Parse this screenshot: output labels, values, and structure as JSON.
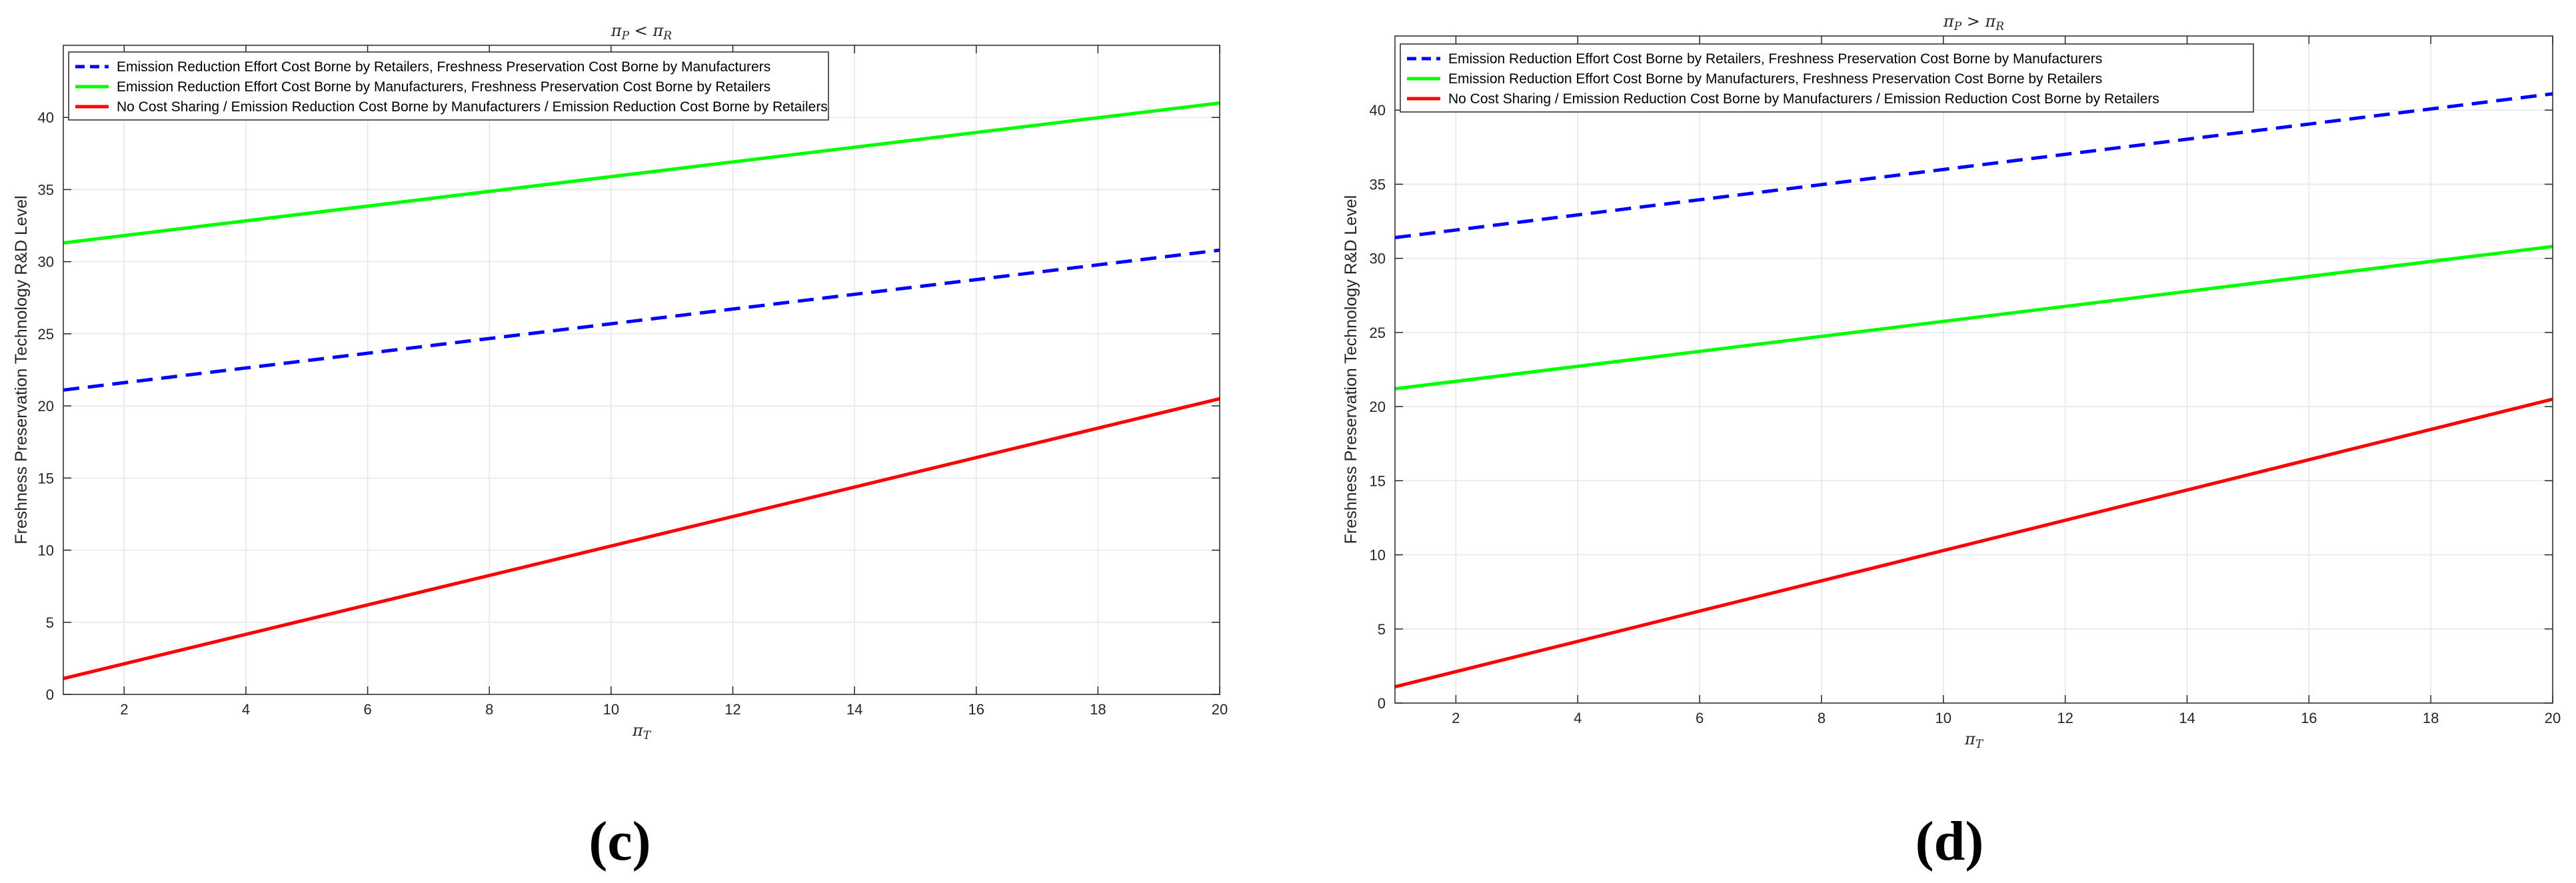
{
  "colors": {
    "blue": "#0000ff",
    "green": "#00ff00",
    "red": "#ff0000",
    "grid": "#e6e6e6",
    "axis": "#262626"
  },
  "chart_data": [
    {
      "type": "line",
      "panel_label": "(c)",
      "title": "π_P < π_R",
      "title_parts": {
        "var1": "π",
        "sub1": "P",
        "op": " < ",
        "var2": "π",
        "sub2": "R"
      },
      "xlabel": "π_T",
      "xlabel_parts": {
        "var": "π",
        "sub": "T"
      },
      "ylabel": "Freshness Preservation Technology R&D Level",
      "xlim": [
        1,
        20
      ],
      "ylim": [
        0,
        45
      ],
      "xticks": [
        2,
        4,
        6,
        8,
        10,
        12,
        14,
        16,
        18,
        20
      ],
      "yticks": [
        0,
        5,
        10,
        15,
        20,
        25,
        30,
        35,
        40
      ],
      "grid": true,
      "legend_position": "top-left",
      "x": [
        1,
        20
      ],
      "series": [
        {
          "name": "Emission Reduction Effort Cost Borne by Retailers, Freshness Preservation Cost Borne by Manufacturers",
          "color": "blue",
          "style": "dashed",
          "values": [
            21.1,
            30.8
          ]
        },
        {
          "name": "Emission Reduction Effort Cost Borne by Manufacturers, Freshness Preservation Cost Borne by Retailers",
          "color": "green",
          "style": "solid",
          "values": [
            31.3,
            41.0
          ]
        },
        {
          "name": "No Cost Sharing / Emission Reduction Cost Borne by Manufacturers / Emission Reduction Cost Borne by Retailers",
          "color": "red",
          "style": "solid",
          "values": [
            1.1,
            20.5
          ]
        }
      ]
    },
    {
      "type": "line",
      "panel_label": "(d)",
      "title": "π_P > π_R",
      "title_parts": {
        "var1": "π",
        "sub1": "P",
        "op": " > ",
        "var2": "π",
        "sub2": "R"
      },
      "xlabel": "π_T",
      "xlabel_parts": {
        "var": "π",
        "sub": "T"
      },
      "ylabel": "Freshness Preservation Technology R&D Level",
      "xlim": [
        1,
        20
      ],
      "ylim": [
        0,
        45
      ],
      "xticks": [
        2,
        4,
        6,
        8,
        10,
        12,
        14,
        16,
        18,
        20
      ],
      "yticks": [
        0,
        5,
        10,
        15,
        20,
        25,
        30,
        35,
        40
      ],
      "grid": true,
      "legend_position": "top-left",
      "x": [
        1,
        20
      ],
      "series": [
        {
          "name": "Emission Reduction Effort Cost Borne by Retailers, Freshness Preservation Cost Borne by Manufacturers",
          "color": "blue",
          "style": "dashed",
          "values": [
            31.4,
            41.1
          ]
        },
        {
          "name": "Emission Reduction Effort Cost Borne by Manufacturers, Freshness Preservation Cost Borne by Retailers",
          "color": "green",
          "style": "solid",
          "values": [
            21.2,
            30.8
          ]
        },
        {
          "name": "No Cost Sharing / Emission Reduction Cost Borne by Manufacturers / Emission Reduction Cost Borne by Retailers",
          "color": "red",
          "style": "solid",
          "values": [
            1.1,
            20.5
          ]
        }
      ]
    }
  ]
}
